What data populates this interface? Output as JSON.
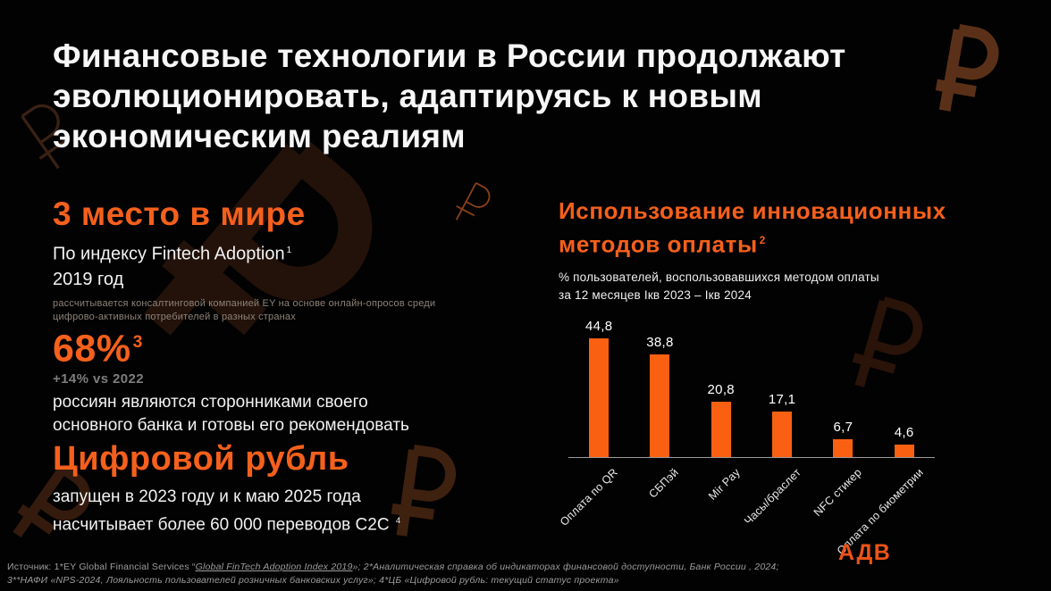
{
  "slide": {
    "title": "Финансовые технологии в России продолжают\nэволюционировать, адаптируясь к новым\nэкономическим реалиям"
  },
  "fact1": {
    "headline": "3 место в мире",
    "line1": "По индексу Fintech Adoption",
    "line1_sup": "1",
    "line2": "2019 год",
    "note": "рассчитывается консалтинговой компанией EY на основе онлайн-опросов среди\nцифрово-активных потребителей в разных странах"
  },
  "fact2": {
    "value": "68%",
    "value_sup": "3",
    "delta": "+14% vs 2022",
    "body": "россиян являются сторонниками своего\nосновного банка и готовы его рекомендовать"
  },
  "fact3": {
    "headline": "Цифровой рубль",
    "body": "запущен в 2023 году и к маю 2025 года\nнасчитывает более 60 000 переводов C2C",
    "body_sup": "4"
  },
  "chart_header": {
    "title": "Использование инновационных\nметодов оплаты",
    "title_sup": "2",
    "subtitle": "% пользователей, воспользовавшихся методом оплаты\nза 12 месяцев Iкв 2023 – Iкв 2024"
  },
  "chart_data": {
    "type": "bar",
    "title": "Использование инновационных методов оплаты",
    "subtitle": "% пользователей, воспользовавшихся методом оплаты за 12 месяцев Iкв 2023 – Iкв 2024",
    "categories": [
      "Оплата по QR",
      "СБПэй",
      "Mir Pay",
      "Часы/браслет",
      "NFC стикер",
      "Оплата по биометрии"
    ],
    "values": [
      44.8,
      38.8,
      20.8,
      17.1,
      6.7,
      4.6
    ],
    "value_labels": [
      "44,8",
      "38,8",
      "20,8",
      "17,1",
      "6,7",
      "4,6"
    ],
    "xlabel": "",
    "ylabel": "% пользователей",
    "ylim": [
      0,
      50
    ],
    "grid": false,
    "legend": false,
    "axis_ticks_hidden": true,
    "x_label_rotation": -45,
    "bar_color": "#F96012"
  },
  "logo": {
    "label": "АДВ"
  },
  "footer": {
    "line1_pre": "Источник: 1*EY Global Financial Services  “",
    "line1_link": "Global FinTech Adoption Index 2019",
    "line1_post": "»; 2*Аналитическая справка об индикаторах финансовой доступности, Банк России , 2024;",
    "line2": "3**НАФИ «NPS-2024, Лояльность  пользователей  розничных банковских услуг»; 4*ЦБ «Цифровой рубль: текущий статус проекта»"
  },
  "decor": {
    "ruble": "₽"
  },
  "colors": {
    "background": "#000000",
    "accent_orange": "#F5601C",
    "bar_orange": "#F96012",
    "logo_orange": "#EE5317",
    "text_white": "#F7F7F7",
    "note_gray": "#8D8279",
    "delta_gray": "#7D7D7D",
    "footer_gray": "#9C9C9C"
  }
}
